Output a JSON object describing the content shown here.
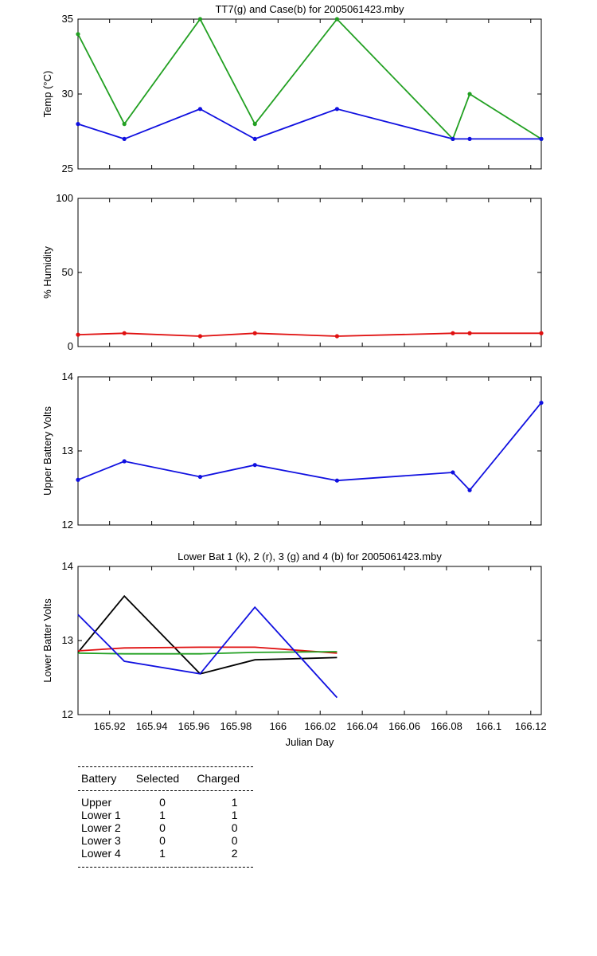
{
  "chart_data": [
    {
      "type": "line",
      "title": "TT7(g) and Case(b) for 2005061423.mby",
      "ylabel": "Temp  (°C)",
      "xlabel": "",
      "xlim": [
        165.905,
        166.125
      ],
      "ylim": [
        25,
        35
      ],
      "yticks": [
        "25",
        "30",
        "35"
      ],
      "series": [
        {
          "color": "#22a022",
          "markers": true,
          "x": [
            165.905,
            165.927,
            165.963,
            165.989,
            166.028,
            166.083,
            166.091,
            166.125
          ],
          "y": [
            34,
            28,
            35,
            28,
            35,
            27,
            30,
            27
          ]
        },
        {
          "color": "#1010e0",
          "markers": true,
          "x": [
            165.905,
            165.927,
            165.963,
            165.989,
            166.028,
            166.083,
            166.091,
            166.125
          ],
          "y": [
            28,
            27,
            29,
            27,
            29,
            27,
            27,
            27
          ]
        }
      ]
    },
    {
      "type": "line",
      "title": "",
      "ylabel": "% Humidity",
      "xlabel": "",
      "xlim": [
        165.905,
        166.125
      ],
      "ylim": [
        0,
        100
      ],
      "yticks": [
        "0",
        "50",
        "100"
      ],
      "series": [
        {
          "color": "#e01010",
          "markers": true,
          "x": [
            165.905,
            165.927,
            165.963,
            165.989,
            166.028,
            166.083,
            166.091,
            166.125
          ],
          "y": [
            8,
            9,
            7,
            9,
            7,
            9,
            9,
            9
          ]
        }
      ]
    },
    {
      "type": "line",
      "title": "",
      "ylabel": "Upper Battery Volts",
      "xlabel": "",
      "xlim": [
        165.905,
        166.125
      ],
      "ylim": [
        12,
        14
      ],
      "yticks": [
        "12",
        "13",
        "14"
      ],
      "series": [
        {
          "color": "#1010e0",
          "markers": true,
          "x": [
            165.905,
            165.927,
            165.963,
            165.989,
            166.028,
            166.083,
            166.091,
            166.125
          ],
          "y": [
            12.61,
            12.86,
            12.65,
            12.81,
            12.6,
            12.71,
            12.47,
            13.65
          ]
        }
      ]
    },
    {
      "type": "line",
      "title": "Lower Bat 1 (k), 2 (r), 3 (g) and 4 (b) for 2005061423.mby",
      "ylabel": "Lower Batter Volts",
      "xlabel": "Julian Day",
      "xlim": [
        165.905,
        166.125
      ],
      "ylim": [
        12,
        14
      ],
      "yticks": [
        "12",
        "13",
        "14"
      ],
      "xticks": [
        165.92,
        165.94,
        165.96,
        165.98,
        166,
        166.02,
        166.04,
        166.06,
        166.08,
        166.1,
        166.12
      ],
      "xticklabels": [
        "165.92",
        "165.94",
        "165.96",
        "165.98",
        "166",
        "166.02",
        "166.04",
        "166.06",
        "166.08",
        "166.1",
        "166.12"
      ],
      "series": [
        {
          "color": "#000000",
          "markers": false,
          "x": [
            165.905,
            165.927,
            165.963,
            165.989,
            166.028
          ],
          "y": [
            12.84,
            13.6,
            12.55,
            12.74,
            12.77
          ]
        },
        {
          "color": "#e01010",
          "markers": false,
          "x": [
            165.905,
            165.927,
            165.963,
            165.989,
            166.028
          ],
          "y": [
            12.86,
            12.9,
            12.91,
            12.91,
            12.83
          ]
        },
        {
          "color": "#22a022",
          "markers": false,
          "x": [
            165.905,
            165.927,
            165.963,
            165.989,
            166.028
          ],
          "y": [
            12.83,
            12.82,
            12.82,
            12.84,
            12.85
          ]
        },
        {
          "color": "#1010e0",
          "markers": false,
          "x": [
            165.905,
            165.927,
            165.963,
            165.989,
            166.028
          ],
          "y": [
            13.35,
            12.72,
            12.55,
            13.45,
            12.23
          ]
        }
      ]
    }
  ],
  "table": {
    "headers": [
      "Battery",
      "Selected",
      "Charged"
    ],
    "rows": [
      [
        "Upper",
        "0",
        "1"
      ],
      [
        "Lower 1",
        "1",
        "1"
      ],
      [
        "Lower 2",
        "0",
        "0"
      ],
      [
        "Lower 3",
        "0",
        "0"
      ],
      [
        "Lower 4",
        "1",
        "2"
      ]
    ]
  }
}
